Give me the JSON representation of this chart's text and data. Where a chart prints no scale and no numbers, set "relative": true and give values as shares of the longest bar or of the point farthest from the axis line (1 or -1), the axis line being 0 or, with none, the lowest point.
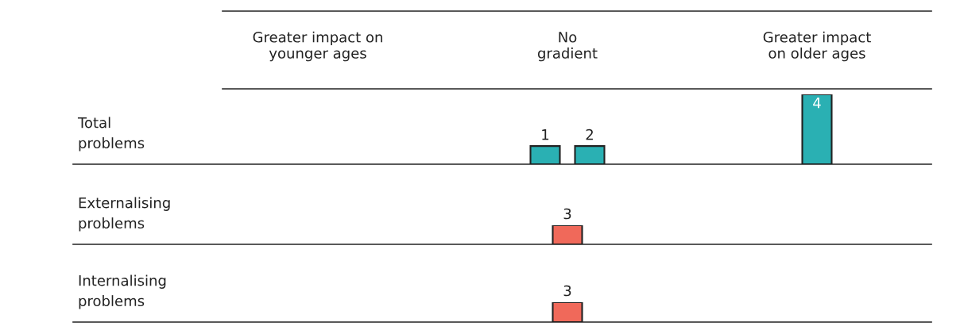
{
  "chart_data": [
    {
      "type": "bar",
      "relative": true,
      "categories": [
        "Greater impact on\nyounger ages",
        "No\ngradient",
        "Greater impact\non older ages"
      ],
      "ylabel": "Total\nproblems",
      "tick_labels": "x",
      "series": [
        {
          "name": "1",
          "color": "#2ab0b3",
          "values": [
            null,
            0.26,
            null
          ]
        },
        {
          "name": "2",
          "color": "#2ab0b3",
          "values": [
            null,
            0.26,
            null
          ]
        },
        {
          "name": "4",
          "color": "#2ab0b3",
          "values": [
            null,
            null,
            1
          ]
        }
      ]
    },
    {
      "type": "bar",
      "relative": true,
      "categories": [
        null,
        null,
        null
      ],
      "ylabel": "Externalising\nproblems",
      "tick_labels": false,
      "series": [
        {
          "name": "3",
          "color": "#f0695a",
          "values": [
            null,
            1,
            null
          ]
        }
      ]
    },
    {
      "type": "bar",
      "relative": true,
      "categories": [
        null,
        null,
        null
      ],
      "ylabel": "Internalising\nproblems",
      "tick_labels": false,
      "series": [
        {
          "name": "3",
          "color": "#f0695a",
          "values": [
            null,
            1,
            null
          ]
        }
      ]
    }
  ]
}
